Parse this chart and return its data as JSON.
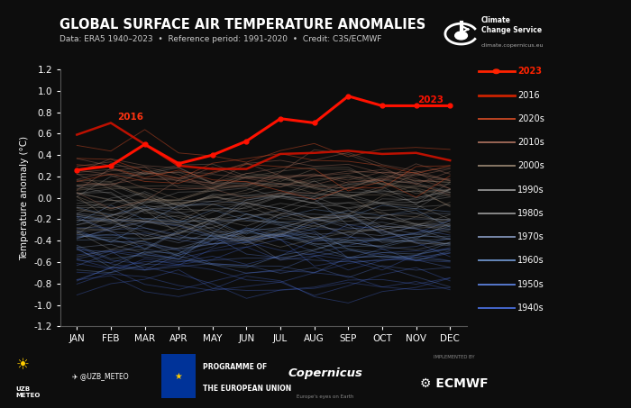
{
  "title": "GLOBAL SURFACE AIR TEMPERATURE ANOMALIES",
  "subtitle": "Data: ERA5 1940–2023  •  Reference period: 1991-2020  •  Credit: C3S/ECMWF",
  "ylabel": "Temperature anomaly (°C)",
  "background_color": "#0d0d0d",
  "footer_color": "#111111",
  "months": [
    "JAN",
    "FEB",
    "MAR",
    "APR",
    "MAY",
    "JUN",
    "JUL",
    "AUG",
    "SEP",
    "OCT",
    "NOV",
    "DEC"
  ],
  "ylim": [
    -1.2,
    1.2
  ],
  "year_2023": [
    0.26,
    0.3,
    0.5,
    0.32,
    0.4,
    0.53,
    0.74,
    0.7,
    0.95,
    0.86,
    0.86,
    0.86
  ],
  "year_2016": [
    0.59,
    0.7,
    0.5,
    0.3,
    0.27,
    0.27,
    0.41,
    0.42,
    0.44,
    0.41,
    0.42,
    0.35
  ],
  "legend_order": [
    "2023",
    "2016",
    "2020s",
    "2010s",
    "2000s",
    "1990s",
    "1980s",
    "1970s",
    "1960s",
    "1950s",
    "1940s"
  ],
  "legend_colors": {
    "2023": "#ff2200",
    "2016": "#cc2200",
    "2020s": "#bb4422",
    "2010s": "#996655",
    "2000s": "#887766",
    "1990s": "#888888",
    "1980s": "#888888",
    "1970s": "#7788aa",
    "1960s": "#6688bb",
    "1950s": "#5577cc",
    "1940s": "#4466cc"
  },
  "decade_centers": {
    "2020s": 0.3,
    "2010s": 0.18,
    "2000s": 0.08,
    "1990s": -0.02,
    "1980s": -0.15,
    "1970s": -0.25,
    "1960s": -0.35,
    "1950s": -0.5,
    "1940s": -0.62
  },
  "decade_spread": {
    "2020s": 0.12,
    "2010s": 0.14,
    "2000s": 0.15,
    "1990s": 0.16,
    "1980s": 0.16,
    "1970s": 0.16,
    "1960s": 0.16,
    "1950s": 0.18,
    "1940s": 0.18
  },
  "decade_colors": {
    "2020s": "#bb4422",
    "2010s": "#996655",
    "2000s": "#887766",
    "1990s": "#888888",
    "1980s": "#888888",
    "1970s": "#7788aa",
    "1960s": "#6688bb",
    "1950s": "#5577cc",
    "1940s": "#4466cc"
  },
  "decade_alpha": {
    "2020s": 0.55,
    "2010s": 0.45,
    "2000s": 0.42,
    "1990s": 0.4,
    "1980s": 0.4,
    "1970s": 0.4,
    "1960s": 0.4,
    "1950s": 0.38,
    "1940s": 0.38
  },
  "decade_count": {
    "2020s": 4,
    "2010s": 10,
    "2000s": 10,
    "1990s": 10,
    "1980s": 10,
    "1970s": 10,
    "1960s": 10,
    "1950s": 10,
    "1940s": 10
  }
}
